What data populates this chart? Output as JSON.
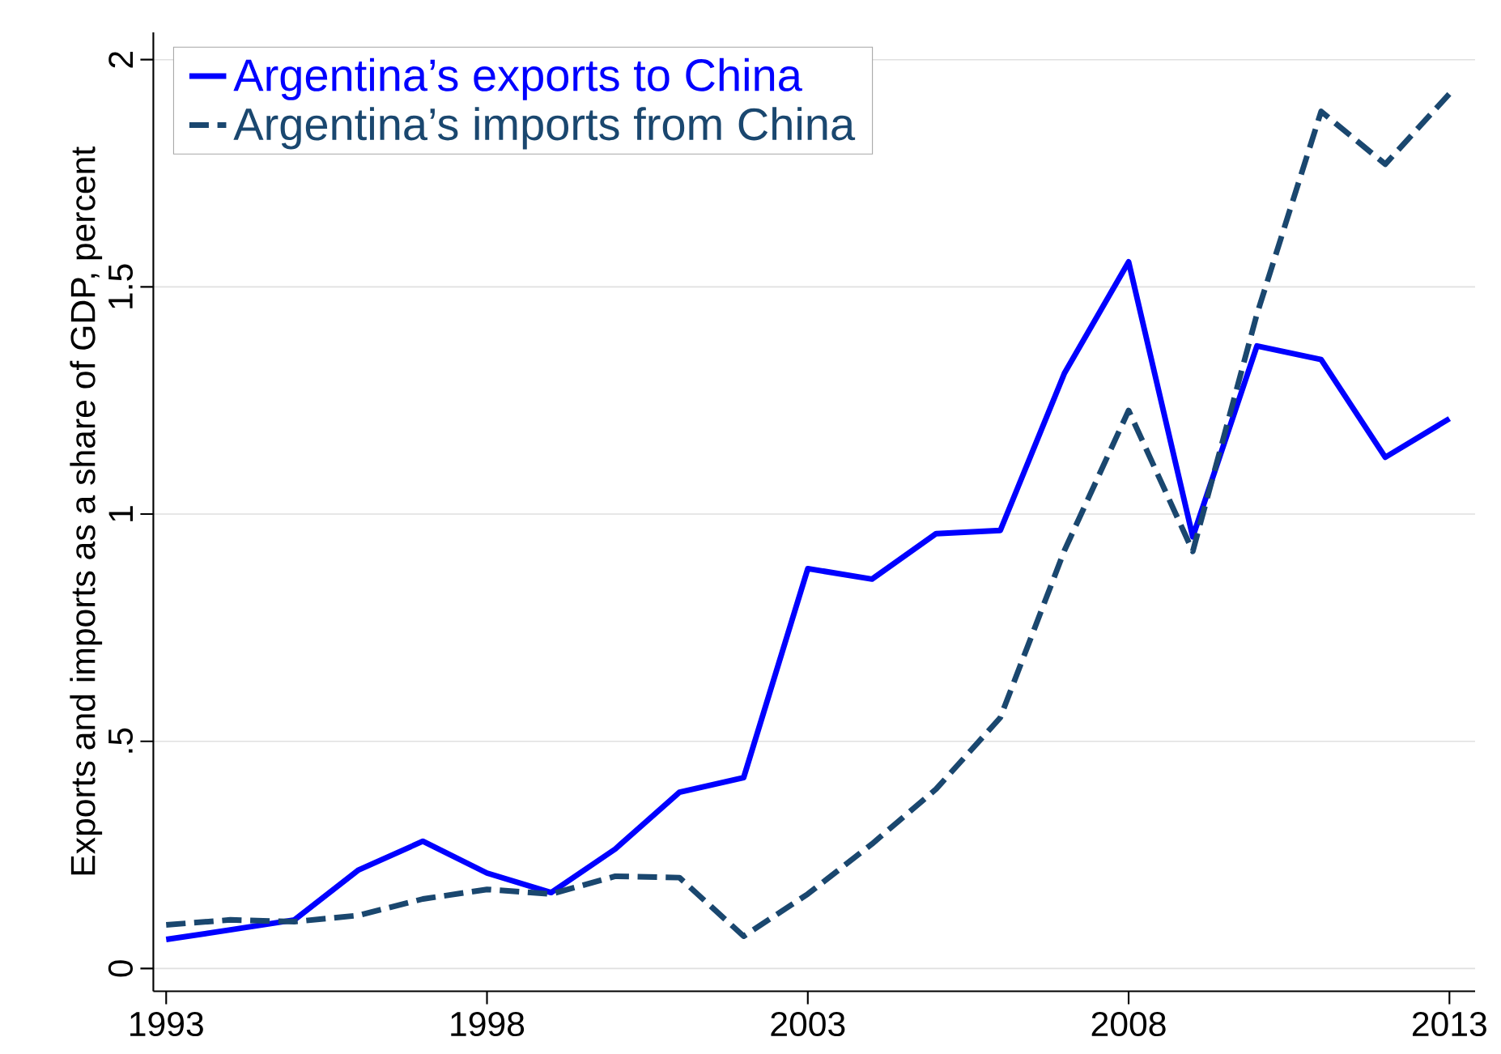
{
  "chart_data": {
    "type": "line",
    "ylabel": "Exports and imports as a share of GDP, percent",
    "x": [
      1993,
      1994,
      1995,
      1996,
      1997,
      1998,
      1999,
      2000,
      2001,
      2002,
      2003,
      2004,
      2005,
      2006,
      2007,
      2008,
      2009,
      2010,
      2011,
      2012,
      2013
    ],
    "series": [
      {
        "name": "Argentina’s exports to China",
        "color": "#0000ff",
        "line_style": "solid",
        "values": [
          0.064,
          0.085,
          0.107,
          0.217,
          0.28,
          0.21,
          0.167,
          0.263,
          0.388,
          0.42,
          0.88,
          0.857,
          0.957,
          0.964,
          1.31,
          1.555,
          0.95,
          1.37,
          1.34,
          1.125,
          1.21
        ]
      },
      {
        "name": "Argentina’s imports from China",
        "color": "#1a476f",
        "line_style": "dashed",
        "values": [
          0.096,
          0.107,
          0.103,
          0.117,
          0.153,
          0.174,
          0.164,
          0.203,
          0.2,
          0.071,
          0.164,
          0.274,
          0.395,
          0.552,
          0.92,
          1.228,
          0.918,
          1.44,
          1.886,
          1.77,
          1.925
        ]
      }
    ],
    "xlim": [
      1992.8,
      2013.4
    ],
    "ylim": [
      -0.05,
      2.06
    ],
    "xticks": [
      1993,
      1998,
      2003,
      2008,
      2013
    ],
    "yticks": [
      0,
      {
        "value": 0.5,
        "label": ".5"
      },
      1,
      1.5,
      2
    ],
    "grid": "y",
    "legend": "top left"
  }
}
